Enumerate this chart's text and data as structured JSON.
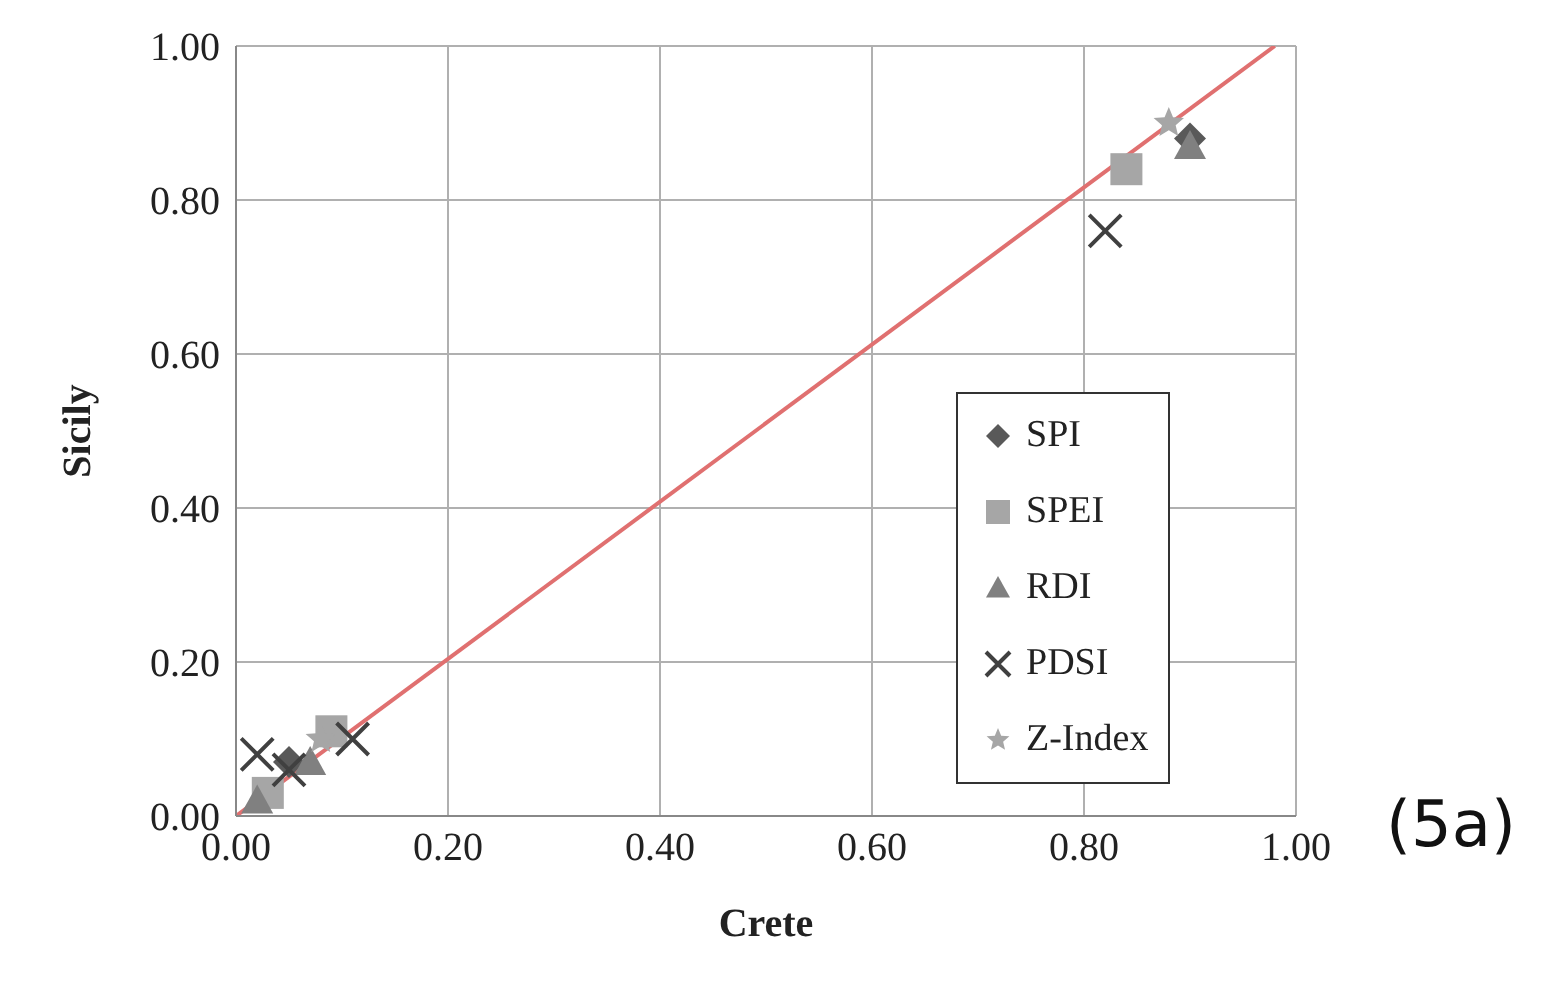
{
  "chart_data": {
    "type": "scatter",
    "xlabel": "Crete",
    "ylabel": "Sicily",
    "xlim": [
      0,
      1
    ],
    "ylim": [
      0,
      1
    ],
    "xticks": [
      {
        "value": 0,
        "label": "0.00"
      },
      {
        "value": 0.2,
        "label": "0.20"
      },
      {
        "value": 0.4,
        "label": "0.40"
      },
      {
        "value": 0.6,
        "label": "0.60"
      },
      {
        "value": 0.8,
        "label": "0.80"
      },
      {
        "value": 1,
        "label": "1.00"
      }
    ],
    "yticks": [
      {
        "value": 0,
        "label": "0.00"
      },
      {
        "value": 0.2,
        "label": "0.20"
      },
      {
        "value": 0.4,
        "label": "0.40"
      },
      {
        "value": 0.6,
        "label": "0.60"
      },
      {
        "value": 0.8,
        "label": "0.80"
      },
      {
        "value": 1,
        "label": "1.00"
      }
    ],
    "grid": true,
    "legend": "right",
    "annotations": [
      "(5a)"
    ],
    "series": [
      {
        "name": "SPI",
        "color": "#595959",
        "marker": "diamond",
        "x": [
          0.9,
          0.05
        ],
        "values": [
          0.88,
          0.07
        ]
      },
      {
        "name": "SPEI",
        "color": "#a6a6a6",
        "marker": "square",
        "x": [
          0.84,
          0.09,
          0.03
        ],
        "values": [
          0.84,
          0.11,
          0.03
        ]
      },
      {
        "name": "RDI",
        "color": "#808080",
        "marker": "triangle",
        "x": [
          0.9,
          0.07,
          0.02
        ],
        "values": [
          0.87,
          0.07,
          0.02
        ]
      },
      {
        "name": "PDSI",
        "color": "#404040",
        "marker": "cross",
        "x": [
          0.82,
          0.02,
          0.11,
          0.05
        ],
        "values": [
          0.76,
          0.08,
          0.1,
          0.06
        ]
      },
      {
        "name": "Z-Index",
        "color": "#a6a6a6",
        "marker": "star",
        "x": [
          0.88,
          0.08
        ],
        "values": [
          0.9,
          0.1
        ]
      },
      {
        "type": "line",
        "color": "#e07070",
        "marker": "none",
        "x": [
          0,
          0.98
        ],
        "values": [
          0,
          1.0
        ]
      }
    ]
  }
}
